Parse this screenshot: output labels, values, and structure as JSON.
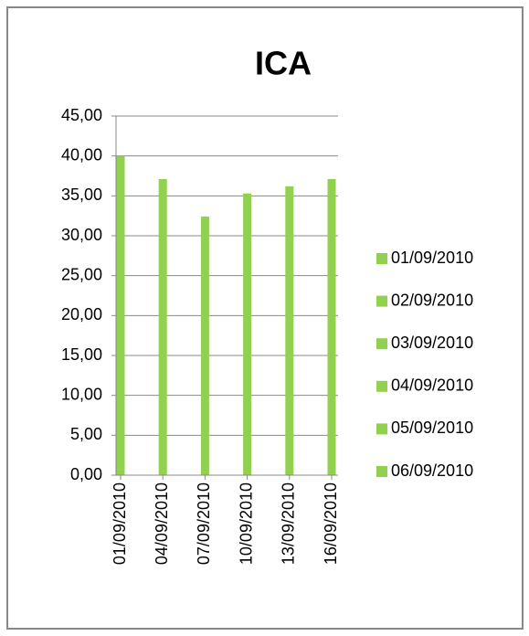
{
  "chart_data": {
    "type": "bar",
    "title": "ICA",
    "categories": [
      "01/09/2010",
      "04/09/2010",
      "07/09/2010",
      "10/09/2010",
      "13/09/2010",
      "16/09/2010"
    ],
    "values": [
      40.0,
      37.1,
      32.4,
      35.3,
      36.2,
      37.1
    ],
    "color": "#92d050",
    "ylim": [
      0,
      45
    ],
    "yticks": [
      {
        "value": 0,
        "label": "0,00"
      },
      {
        "value": 5,
        "label": "5,00"
      },
      {
        "value": 10,
        "label": "10,00"
      },
      {
        "value": 15,
        "label": "15,00"
      },
      {
        "value": 20,
        "label": "20,00"
      },
      {
        "value": 25,
        "label": "25,00"
      },
      {
        "value": 30,
        "label": "30,00"
      },
      {
        "value": 35,
        "label": "35,00"
      },
      {
        "value": 40,
        "label": "40,00"
      },
      {
        "value": 45,
        "label": "45,00"
      }
    ],
    "grid": true,
    "legend": [
      "01/09/2010",
      "02/09/2010",
      "03/09/2010",
      "04/09/2010",
      "05/09/2010",
      "06/09/2010"
    ],
    "legend_position": "right"
  }
}
